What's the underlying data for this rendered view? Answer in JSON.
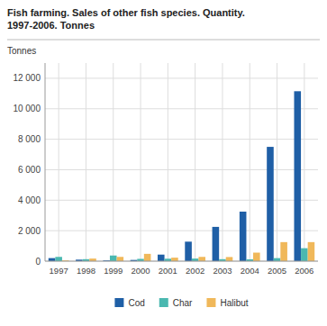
{
  "chart_data": {
    "type": "bar",
    "title": "Fish farming. Sales of other fish species. Quantity.\n1997-2006. Tonnes",
    "y_label": "Tonnes",
    "categories": [
      "1997",
      "1998",
      "1999",
      "2000",
      "2001",
      "2002",
      "2003",
      "2004",
      "2005",
      "2006"
    ],
    "series": [
      {
        "name": "Cod",
        "color": "#1f5fa6",
        "values": [
          200,
          100,
          50,
          80,
          430,
          1280,
          2250,
          3250,
          7500,
          11150
        ]
      },
      {
        "name": "Char",
        "color": "#4ab8b0",
        "values": [
          280,
          130,
          370,
          150,
          160,
          170,
          130,
          120,
          200,
          850
        ]
      },
      {
        "name": "Halibut",
        "color": "#f0b85a",
        "values": [
          50,
          170,
          280,
          480,
          230,
          280,
          270,
          560,
          1250,
          1250
        ]
      }
    ],
    "ylim": [
      0,
      13000
    ],
    "yticks": [
      0,
      {
        "value": 2000,
        "label": "2 000"
      },
      {
        "value": 4000,
        "label": "4 000"
      },
      {
        "value": 6000,
        "label": "6 000"
      },
      {
        "value": 8000,
        "label": "8 000"
      },
      {
        "value": 10000,
        "label": "10 000"
      },
      {
        "value": 12000,
        "label": "12 000"
      }
    ],
    "grid": true,
    "legend": "bottom"
  }
}
